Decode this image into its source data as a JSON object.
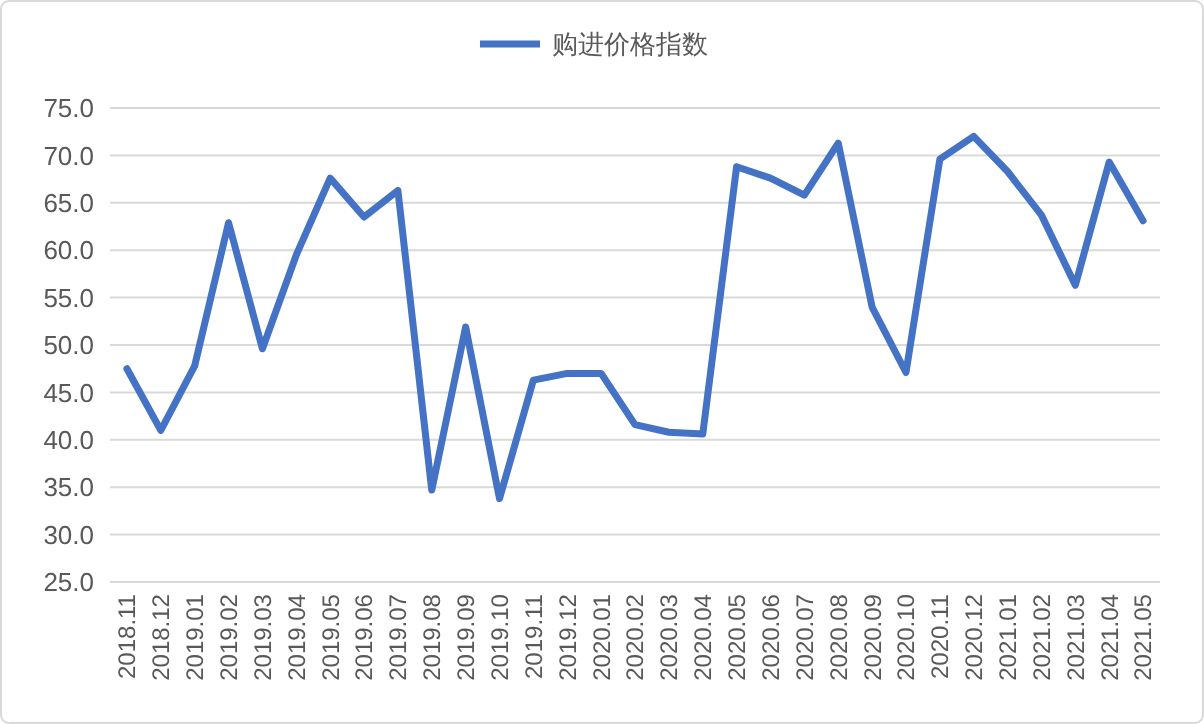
{
  "chart_data": {
    "type": "line",
    "categories": [
      "2018.11",
      "2018.12",
      "2019.01",
      "2019.02",
      "2019.03",
      "2019.04",
      "2019.05",
      "2019.06",
      "2019.07",
      "2019.08",
      "2019.09",
      "2019.10",
      "2019.11",
      "2019.12",
      "2020.01",
      "2020.02",
      "2020.03",
      "2020.04",
      "2020.05",
      "2020.06",
      "2020.07",
      "2020.08",
      "2020.09",
      "2020.10",
      "2020.11",
      "2020.12",
      "2021.01",
      "2021.02",
      "2021.03",
      "2021.04",
      "2021.05"
    ],
    "series": [
      {
        "name": "购进价格指数",
        "color": "#4472c4",
        "values": [
          47.5,
          41.0,
          47.8,
          62.9,
          49.6,
          59.5,
          67.6,
          63.5,
          66.3,
          34.7,
          51.9,
          33.8,
          46.3,
          47.0,
          47.0,
          41.6,
          40.8,
          40.6,
          68.8,
          67.6,
          65.8,
          71.3,
          54.0,
          47.1,
          69.6,
          72.0,
          68.3,
          63.7,
          56.3,
          69.3,
          63.1
        ]
      }
    ],
    "ylim": [
      25,
      75
    ],
    "yticks": [
      {
        "value": 25,
        "label": "25.0"
      },
      {
        "value": 30,
        "label": "30.0"
      },
      {
        "value": 35,
        "label": "35.0"
      },
      {
        "value": 40,
        "label": "40.0"
      },
      {
        "value": 45,
        "label": "45.0"
      },
      {
        "value": 50,
        "label": "50.0"
      },
      {
        "value": 55,
        "label": "55.0"
      },
      {
        "value": 60,
        "label": "60.0"
      },
      {
        "value": 65,
        "label": "65.0"
      },
      {
        "value": 70,
        "label": "70.0"
      },
      {
        "value": 75,
        "label": "75.0"
      }
    ],
    "grid": "y",
    "legend": "top",
    "marker": "none",
    "line_style": "solid"
  }
}
